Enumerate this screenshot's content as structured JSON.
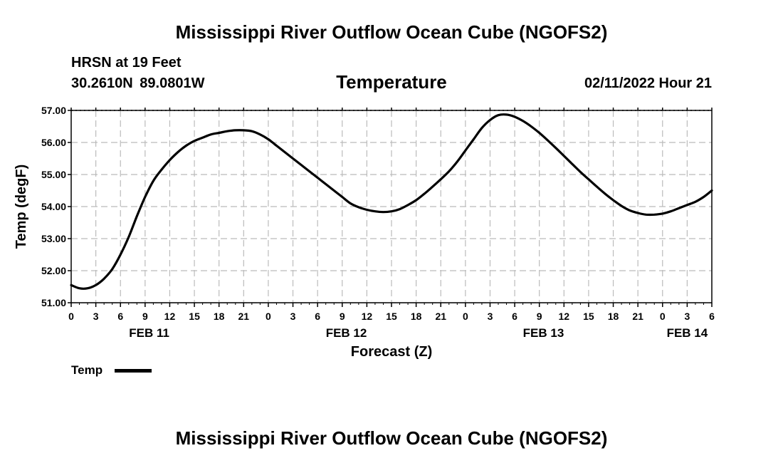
{
  "header": {
    "title": "Mississippi River Outflow Ocean Cube (NGOFS2)",
    "station": "HRSN at 19 Feet",
    "coords": "30.2610N  89.0801W",
    "subtitle": "Temperature",
    "timestamp": "02/11/2022 Hour 21"
  },
  "footer": {
    "title": "Mississippi River Outflow Ocean Cube (NGOFS2)"
  },
  "chart_data": {
    "type": "line",
    "title": "Temperature",
    "xlabel": "Forecast (Z)",
    "ylabel": "Temp (degF)",
    "xlim": [
      0,
      78
    ],
    "ylim": [
      51.0,
      57.0
    ],
    "y_ticks": [
      51.0,
      52.0,
      53.0,
      54.0,
      55.0,
      56.0,
      57.0
    ],
    "y_tick_labels": [
      "51.00",
      "52.00",
      "53.00",
      "54.00",
      "55.00",
      "56.00",
      "57.00"
    ],
    "x_tick_labels": [
      "0",
      "3",
      "6",
      "9",
      "12",
      "15",
      "18",
      "21",
      "0",
      "3",
      "6",
      "9",
      "12",
      "15",
      "18",
      "21",
      "0",
      "3",
      "6",
      "9",
      "12",
      "15",
      "18",
      "21",
      "0",
      "3",
      "6"
    ],
    "date_labels": [
      {
        "label": "FEB 11",
        "hour": 9.5
      },
      {
        "label": "FEB 12",
        "hour": 33.5
      },
      {
        "label": "FEB 13",
        "hour": 57.5
      },
      {
        "label": "FEB 14",
        "hour": 75
      }
    ],
    "grid": true,
    "legend": "bottom-left",
    "series": [
      {
        "name": "Temp",
        "color": "#000000",
        "x": [
          0,
          1,
          2,
          3,
          4,
          5,
          6,
          7,
          8,
          9,
          10,
          11,
          12,
          13,
          14,
          15,
          16,
          17,
          18,
          19,
          20,
          21,
          22,
          23,
          24,
          25,
          26,
          27,
          28,
          29,
          30,
          31,
          32,
          33,
          34,
          35,
          36,
          37,
          38,
          39,
          40,
          41,
          42,
          43,
          44,
          45,
          46,
          47,
          48,
          49,
          50,
          51,
          52,
          53,
          54,
          55,
          56,
          57,
          58,
          59,
          60,
          61,
          62,
          63,
          64,
          65,
          66,
          67,
          68,
          69,
          70,
          71,
          72,
          73,
          74,
          75,
          76,
          77,
          78
        ],
        "values": [
          51.55,
          51.45,
          51.45,
          51.55,
          51.75,
          52.05,
          52.5,
          53.05,
          53.7,
          54.3,
          54.8,
          55.15,
          55.45,
          55.7,
          55.9,
          56.05,
          56.15,
          56.25,
          56.3,
          56.35,
          56.38,
          56.38,
          56.35,
          56.25,
          56.1,
          55.9,
          55.7,
          55.5,
          55.3,
          55.1,
          54.9,
          54.7,
          54.5,
          54.3,
          54.1,
          53.98,
          53.9,
          53.85,
          53.83,
          53.85,
          53.92,
          54.05,
          54.2,
          54.4,
          54.62,
          54.85,
          55.1,
          55.4,
          55.75,
          56.1,
          56.45,
          56.7,
          56.85,
          56.87,
          56.8,
          56.67,
          56.5,
          56.3,
          56.07,
          55.83,
          55.58,
          55.33,
          55.08,
          54.85,
          54.62,
          54.4,
          54.2,
          54.02,
          53.88,
          53.8,
          53.75,
          53.75,
          53.78,
          53.85,
          53.95,
          54.05,
          54.15,
          54.3,
          54.5
        ]
      }
    ]
  }
}
